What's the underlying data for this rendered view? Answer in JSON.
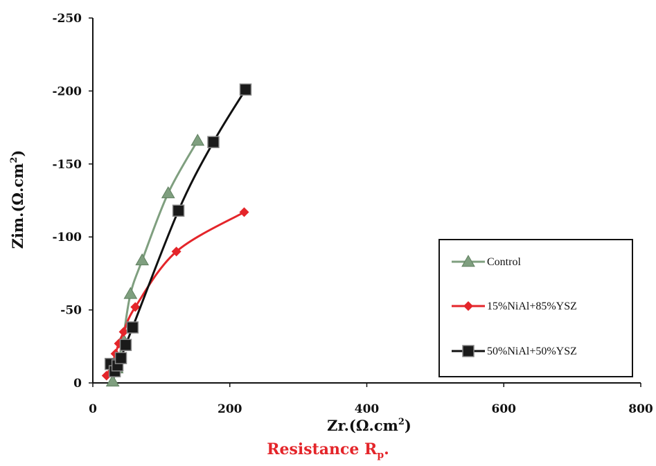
{
  "chart_data": {
    "type": "line",
    "xlabel": "Zr.(Ω.cm",
    "xlabel_sup": "2",
    "xlabel_end": ")",
    "ylabel": "Zim.(Ω.cm",
    "ylabel_sup": "2",
    "ylabel_end": ")",
    "xlim": [
      0,
      800
    ],
    "ylim": [
      0,
      -250
    ],
    "x_ticks": [
      0,
      200,
      400,
      600,
      800
    ],
    "y_ticks": [
      0,
      -50,
      -100,
      -150,
      -200,
      -250
    ],
    "x_tick_labels": [
      "0",
      "200",
      "400",
      "600",
      "800"
    ],
    "y_tick_labels": [
      "0",
      "-50",
      "-100",
      "-150",
      "-200",
      "-250"
    ],
    "grid": false,
    "legend_position": "right",
    "series": [
      {
        "name": "Control",
        "color": "#7f9f7f",
        "marker": "triangle",
        "x": [
          29,
          35,
          44,
          55,
          72,
          110,
          153
        ],
        "y": [
          -1,
          -10,
          -30,
          -61,
          -84,
          -130,
          -166
        ]
      },
      {
        "name": "15%NiAl+85%YSZ",
        "color": "#e4252a",
        "marker": "diamond",
        "x": [
          20,
          28,
          33,
          38,
          45,
          62,
          122,
          221
        ],
        "y": [
          -5,
          -13,
          -20,
          -27,
          -35,
          -52,
          -90,
          -117
        ]
      },
      {
        "name": "50%NiAl+50%YSZ",
        "color": "#111111",
        "marker": "square",
        "x": [
          26,
          32,
          36,
          41,
          48,
          58,
          125,
          176,
          223
        ],
        "y": [
          -13,
          -8,
          -12,
          -17,
          -26,
          -38,
          -118,
          -165,
          -201
        ]
      }
    ]
  },
  "caption": {
    "text": "Resistance R",
    "sub": "p",
    "end": "."
  }
}
